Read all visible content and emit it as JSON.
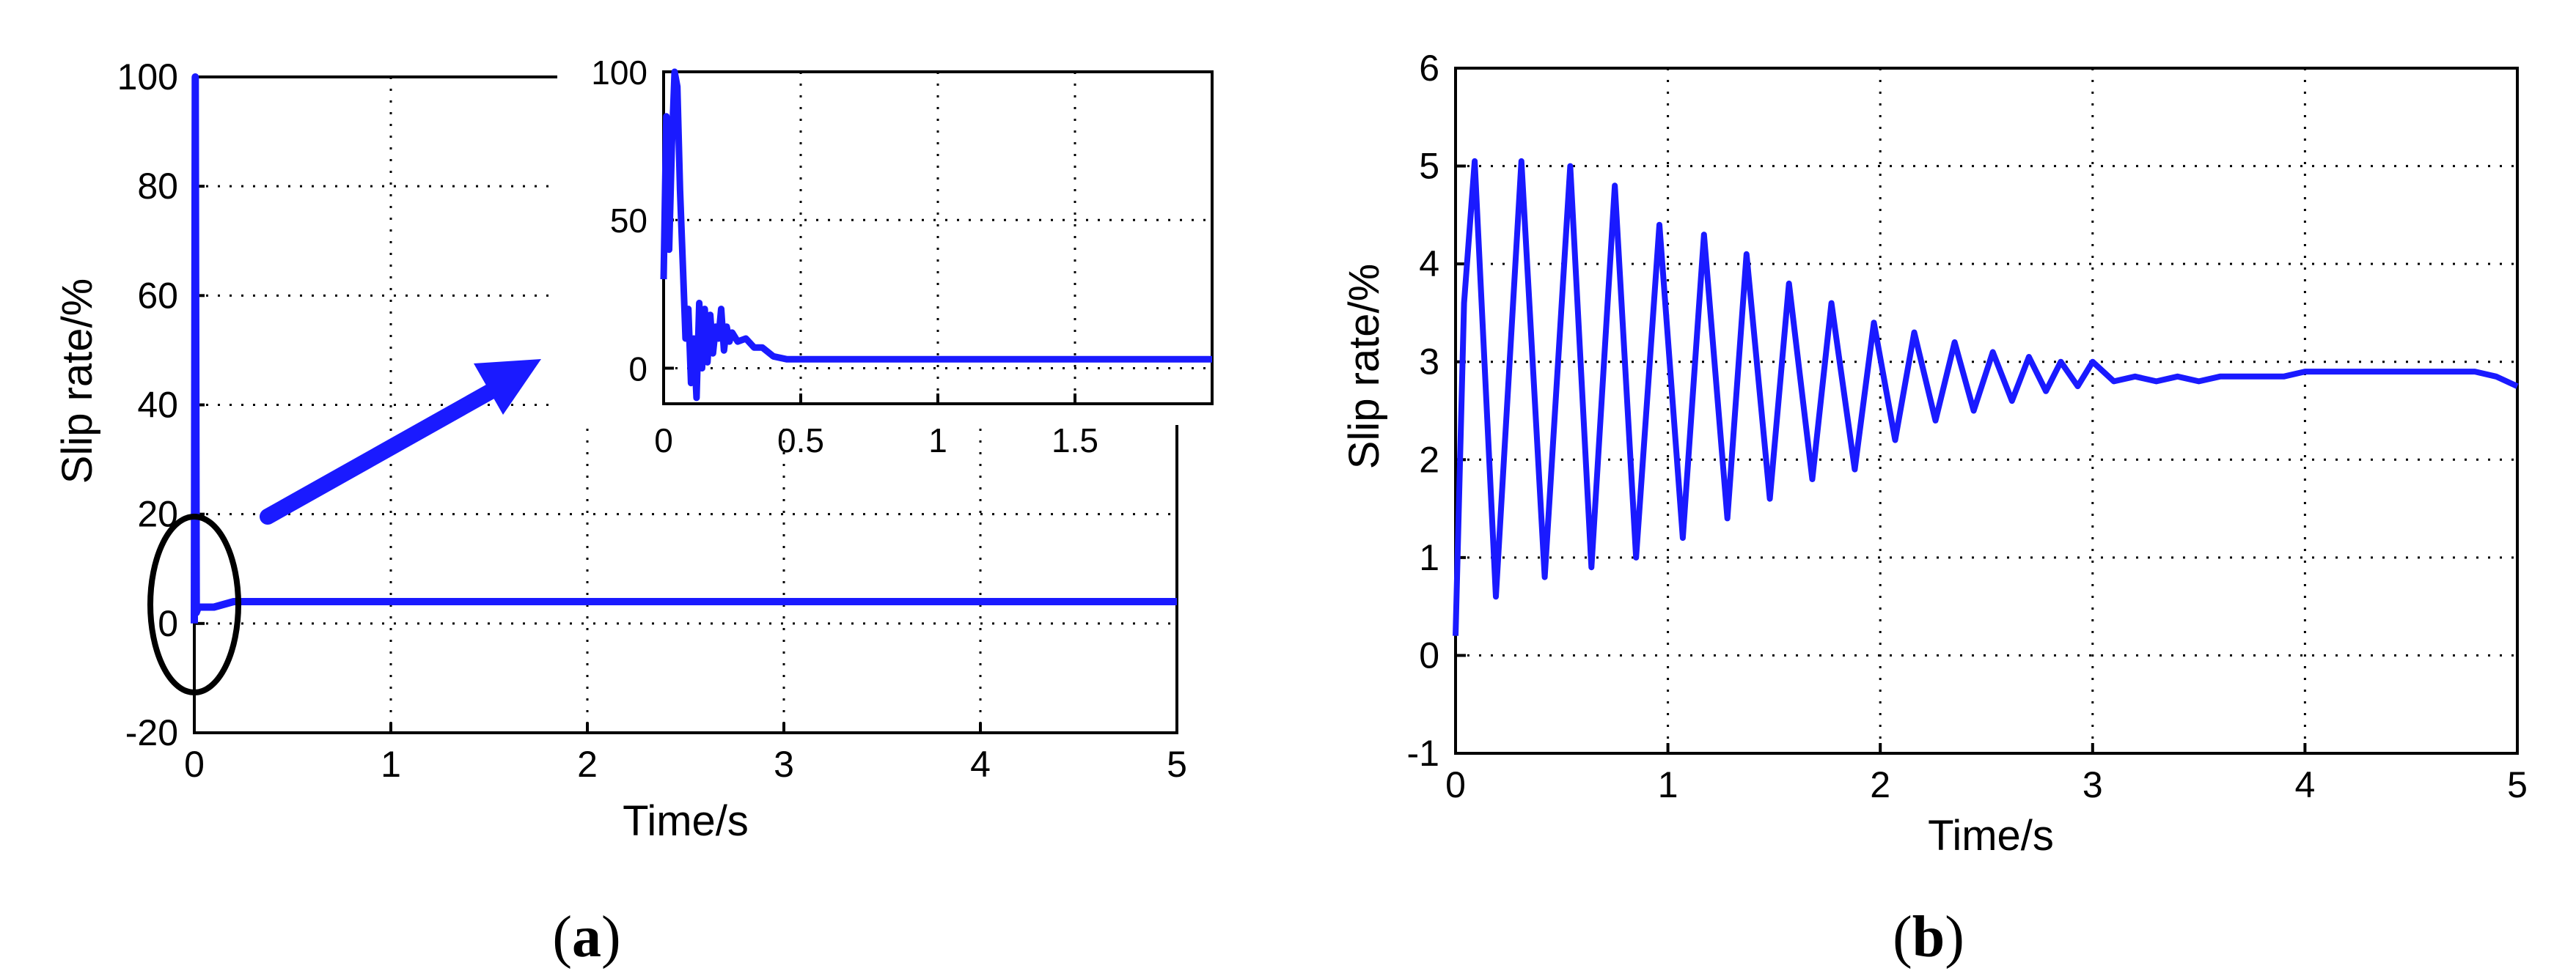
{
  "colors": {
    "series": "#1a1aff",
    "axes": "#000000",
    "annotation": "#000000"
  },
  "captions": [
    {
      "open": "(",
      "letter": "a",
      "close": ")"
    },
    {
      "open": "(",
      "letter": "b",
      "close": ")"
    }
  ],
  "chart_data": [
    {
      "id": "a",
      "type": "line",
      "xlabel": "Time/s",
      "ylabel": "Slip rate/%",
      "xlim": [
        0,
        5
      ],
      "ylim": [
        -20,
        100
      ],
      "xticks": [
        0,
        1,
        2,
        3,
        4,
        5
      ],
      "yticks": [
        -20,
        0,
        20,
        40,
        60,
        80,
        100
      ],
      "grid": true,
      "series": [
        {
          "x": [
            0,
            0.005,
            0.01,
            0.02,
            0.04,
            0.06,
            0.1,
            0.2,
            0.5,
            1,
            2,
            3,
            4,
            5
          ],
          "y": [
            0,
            100,
            2,
            3,
            3,
            3,
            3,
            4,
            4,
            4,
            4,
            4,
            4,
            4
          ]
        }
      ],
      "annotations": [
        "ellipse highlighting t≈0 region",
        "arrow pointing to inset"
      ],
      "inset": {
        "type": "line",
        "xlim": [
          0,
          2
        ],
        "ylim": [
          -12,
          100
        ],
        "xticks": [
          0,
          0.5,
          1,
          1.5
        ],
        "yticks": [
          0,
          50,
          100
        ],
        "grid": true,
        "series": [
          {
            "x": [
              0,
              0.01,
              0.02,
              0.03,
              0.04,
              0.05,
              0.06,
              0.07,
              0.08,
              0.09,
              0.1,
              0.11,
              0.12,
              0.13,
              0.14,
              0.15,
              0.16,
              0.17,
              0.18,
              0.19,
              0.2,
              0.21,
              0.22,
              0.23,
              0.24,
              0.25,
              0.27,
              0.3,
              0.33,
              0.36,
              0.4,
              0.45,
              0.5,
              0.7,
              1,
              1.5,
              2
            ],
            "y": [
              30,
              85,
              40,
              75,
              100,
              95,
              60,
              35,
              10,
              20,
              -5,
              10,
              -10,
              22,
              0,
              20,
              2,
              18,
              5,
              14,
              10,
              20,
              6,
              14,
              9,
              12,
              9,
              10,
              7,
              7,
              4,
              3,
              3,
              3,
              3,
              3,
              3
            ]
          }
        ]
      }
    },
    {
      "id": "b",
      "type": "line",
      "xlabel": "Time/s",
      "ylabel": "Slip rate/%",
      "xlim": [
        0,
        5
      ],
      "ylim": [
        -1,
        6
      ],
      "xticks": [
        0,
        1,
        2,
        3,
        4,
        5
      ],
      "yticks": [
        -1,
        0,
        1,
        2,
        3,
        4,
        5,
        6
      ],
      "grid": true,
      "series": [
        {
          "x": [
            0.0,
            0.04,
            0.09,
            0.19,
            0.31,
            0.42,
            0.54,
            0.64,
            0.75,
            0.85,
            0.96,
            1.07,
            1.17,
            1.28,
            1.37,
            1.48,
            1.57,
            1.68,
            1.77,
            1.88,
            1.97,
            2.07,
            2.16,
            2.26,
            2.35,
            2.44,
            2.53,
            2.62,
            2.7,
            2.78,
            2.85,
            2.93,
            3.0,
            3.1,
            3.2,
            3.3,
            3.4,
            3.5,
            3.6,
            3.7,
            3.8,
            3.9,
            4.0,
            4.2,
            4.4,
            4.6,
            4.8,
            4.9,
            5.0
          ],
          "y": [
            0.2,
            3.6,
            5.05,
            0.6,
            5.05,
            0.8,
            5.0,
            0.9,
            4.8,
            1.0,
            4.4,
            1.2,
            4.3,
            1.4,
            4.1,
            1.6,
            3.8,
            1.8,
            3.6,
            1.9,
            3.4,
            2.2,
            3.3,
            2.4,
            3.2,
            2.5,
            3.1,
            2.6,
            3.05,
            2.7,
            3.0,
            2.75,
            3.0,
            2.8,
            2.85,
            2.8,
            2.85,
            2.8,
            2.85,
            2.85,
            2.85,
            2.85,
            2.9,
            2.9,
            2.9,
            2.9,
            2.9,
            2.85,
            2.75
          ]
        }
      ]
    }
  ]
}
